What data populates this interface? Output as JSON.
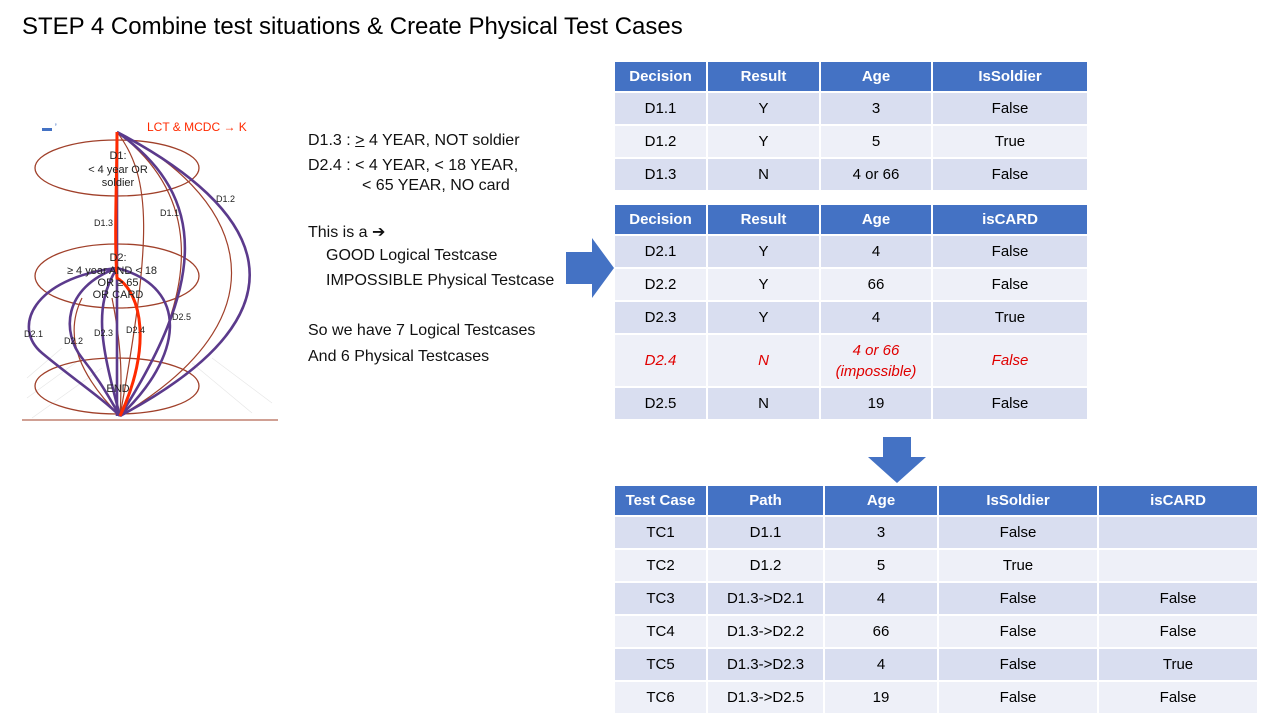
{
  "title": "STEP 4 Combine test situations & Create Physical Test Cases",
  "diagram": {
    "header_fragment": "LCT & MCDC → K",
    "node_d1": [
      "D1:",
      "< 4 year OR",
      "soldier"
    ],
    "node_d2": [
      "D2:",
      "≥ 4 year AND < 18",
      "OR ≥ 65",
      "OR CARD"
    ],
    "node_end": "END",
    "edge_labels": [
      "D1.3",
      "D1.1",
      "D1.2",
      "D2.1",
      "D2.2",
      "D2.3",
      "D2.4",
      "D2.5"
    ]
  },
  "notes": {
    "d13_label": "D1.3 :",
    "d13_text": "4 YEAR,  NOT soldier",
    "d24_label": "D2.4 :",
    "d24_line1": "< 4 YEAR,   <  18 YEAR,",
    "d24_line2": "<  65 YEAR,  NO card",
    "this_is": "This is a",
    "arrow_glyph": "➔",
    "good": "GOOD  Logical Testcase",
    "impossible": "IMPOSSIBLE  Physical Testcase",
    "summary1": "So we have 7 Logical Testcases",
    "summary2": "And 6 Physical Testcases"
  },
  "table1": {
    "headers": [
      "Decision",
      "Result",
      "Age",
      "IsSoldier"
    ],
    "rows": [
      [
        "D1.1",
        "Y",
        "3",
        "False"
      ],
      [
        "D1.2",
        "Y",
        "5",
        "True"
      ],
      [
        "D1.3",
        "N",
        "4 or 66",
        "False"
      ]
    ]
  },
  "table2": {
    "headers": [
      "Decision",
      "Result",
      "Age",
      "isCARD"
    ],
    "rows": [
      [
        "D2.1",
        "Y",
        "4",
        "False"
      ],
      [
        "D2.2",
        "Y",
        "66",
        "False"
      ],
      [
        "D2.3",
        "Y",
        "4",
        "True"
      ],
      [
        "D2.4",
        "N",
        "4 or 66",
        "False"
      ],
      [
        "D2.5",
        "N",
        "19",
        "False"
      ]
    ],
    "impossible_note": "(impossible)"
  },
  "table3": {
    "headers": [
      "Test Case",
      "Path",
      "Age",
      "IsSoldier",
      "isCARD"
    ],
    "rows": [
      [
        "TC1",
        "D1.1",
        "3",
        "False",
        ""
      ],
      [
        "TC2",
        "D1.2",
        "5",
        "True",
        ""
      ],
      [
        "TC3",
        "D1.3->D2.1",
        "4",
        "False",
        "False"
      ],
      [
        "TC4",
        "D1.3->D2.2",
        "66",
        "False",
        "False"
      ],
      [
        "TC5",
        "D1.3->D2.3",
        "4",
        "False",
        "True"
      ],
      [
        "TC6",
        "D1.3->D2.5",
        "19",
        "False",
        "False"
      ]
    ]
  },
  "colors": {
    "header_blue": "#4472C4",
    "row_dark": "#D9DEF0",
    "row_light": "#EEF0F8",
    "impossible_red": "#e00000",
    "path_purple": "#5b3a8c",
    "path_red": "#ff2a00",
    "node_brown": "#a0402a"
  }
}
